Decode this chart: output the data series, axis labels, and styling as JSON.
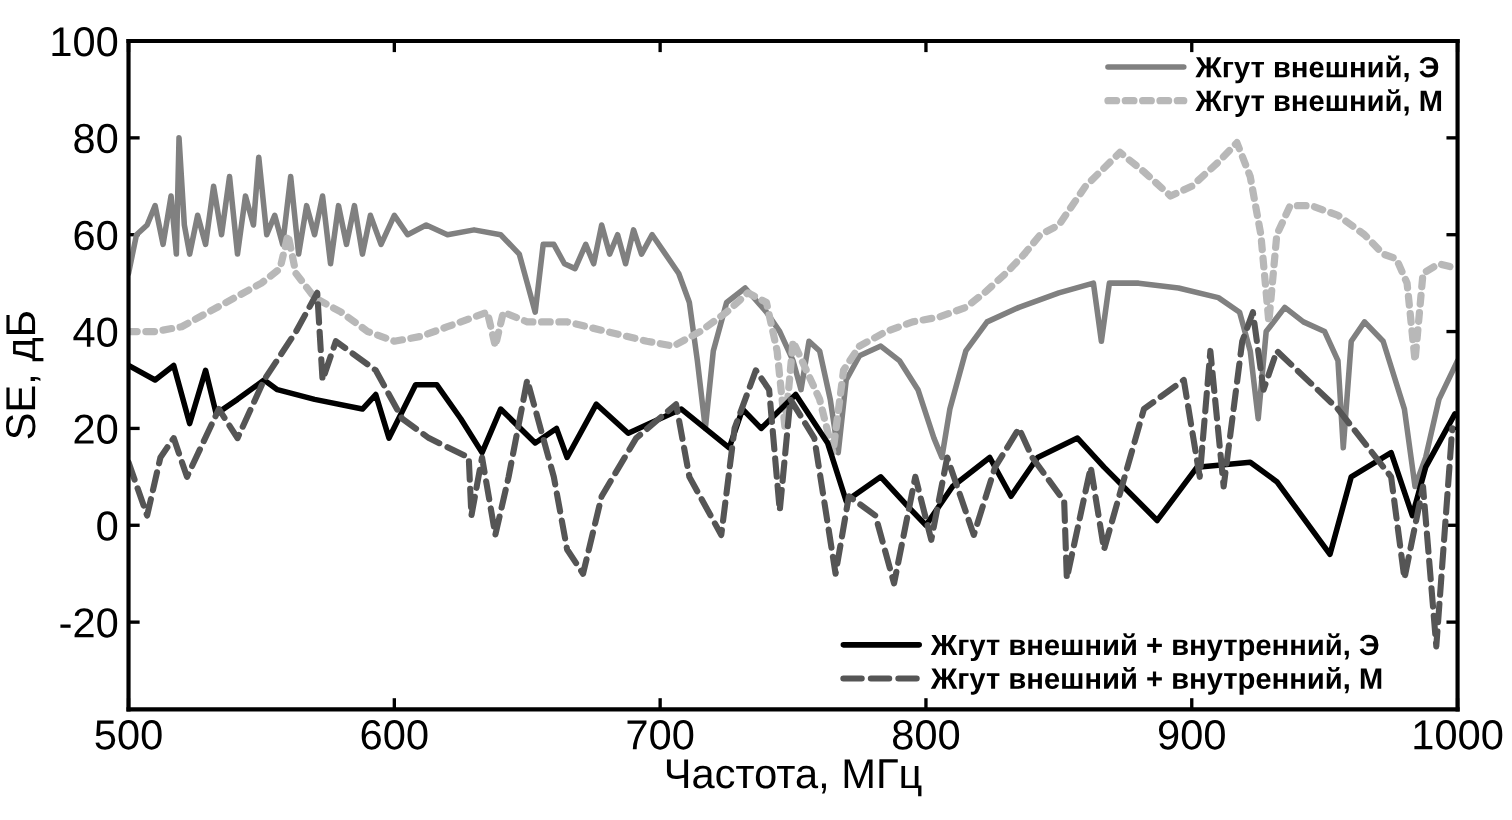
{
  "chart_data": {
    "type": "line",
    "xlabel": "Частота, МГц",
    "ylabel": "SE, дБ",
    "xlim": [
      500,
      1000
    ],
    "xticks": [
      500,
      600,
      700,
      800,
      900,
      1000
    ],
    "ylim": [
      -38,
      100
    ],
    "yticks": [
      -20,
      0,
      20,
      40,
      60,
      80,
      100
    ],
    "grid": false,
    "legend": "right",
    "marker": "none",
    "series": [
      {
        "name": "Жгут внешний, Э",
        "color": "#808080",
        "line_style": "solid",
        "x": [
          500,
          503,
          507,
          510,
          513,
          516,
          518,
          519,
          521,
          523,
          526,
          529,
          532,
          535,
          538,
          541,
          544,
          547,
          549,
          552,
          555,
          558,
          561,
          564,
          567,
          570,
          573,
          576,
          579,
          582,
          585,
          588,
          591,
          595,
          600,
          605,
          612,
          620,
          630,
          640,
          647,
          650,
          653,
          656,
          660,
          664,
          668,
          672,
          675,
          678,
          681,
          684,
          687,
          690,
          693,
          697,
          702,
          707,
          711,
          714,
          717,
          720,
          725,
          732,
          740,
          745,
          750,
          753,
          756,
          760,
          764,
          767,
          770,
          775,
          783,
          790,
          797,
          803,
          806,
          809,
          815,
          823,
          835,
          850,
          863,
          866,
          869,
          880,
          895,
          910,
          918,
          922,
          925,
          928,
          935,
          942,
          950,
          955,
          957,
          960,
          965,
          972,
          980,
          984,
          988,
          993,
          1000
        ],
        "values": [
          52,
          60,
          62,
          66,
          58,
          68,
          56,
          80,
          62,
          56,
          64,
          58,
          70,
          60,
          72,
          56,
          68,
          62,
          76,
          60,
          64,
          58,
          72,
          56,
          66,
          60,
          68,
          54,
          66,
          58,
          66,
          56,
          64,
          58,
          64,
          60,
          62,
          60,
          61,
          60,
          56,
          50,
          44,
          58,
          58,
          54,
          53,
          58,
          54,
          62,
          56,
          60,
          54,
          61,
          56,
          60,
          56,
          52,
          46,
          34,
          20,
          36,
          46,
          49,
          44,
          40,
          34,
          28,
          38,
          36,
          26,
          15,
          30,
          35,
          37,
          34,
          28,
          18,
          14,
          24,
          36,
          42,
          45,
          48,
          50,
          38,
          50,
          50,
          49,
          47,
          44,
          36,
          22,
          40,
          45,
          42,
          40,
          34,
          16,
          38,
          42,
          38,
          24,
          8,
          14,
          26,
          34
        ]
      },
      {
        "name": "Жгут внешний, М",
        "color": "#b8b8b8",
        "line_style": "dotted",
        "x": [
          500,
          510,
          520,
          530,
          540,
          550,
          557,
          560,
          563,
          570,
          580,
          590,
          600,
          610,
          620,
          630,
          635,
          638,
          641,
          650,
          665,
          680,
          695,
          705,
          715,
          725,
          733,
          740,
          744,
          747,
          750,
          755,
          760,
          765,
          769,
          775,
          785,
          795,
          805,
          815,
          822,
          830,
          837,
          843,
          850,
          860,
          873,
          882,
          892,
          900,
          910,
          917,
          922,
          926,
          929,
          932,
          937,
          945,
          955,
          965,
          972,
          977,
          981,
          984,
          987,
          993,
          1000
        ],
        "values": [
          40,
          40,
          41,
          44,
          47,
          50,
          53,
          60,
          52,
          47,
          44,
          40,
          38,
          39,
          41,
          43,
          44,
          37,
          44,
          42,
          42,
          40,
          38,
          37,
          40,
          44,
          48,
          46,
          36,
          20,
          38,
          32,
          26,
          15,
          32,
          37,
          40,
          42,
          43,
          45,
          48,
          52,
          56,
          60,
          62,
          70,
          77,
          73,
          68,
          70,
          75,
          79,
          72,
          60,
          42,
          60,
          66,
          66,
          64,
          60,
          56,
          55,
          50,
          34,
          52,
          54,
          53
        ]
      },
      {
        "name": "Жгут внешний + внутренний, Э",
        "color": "#000000",
        "line_style": "solid",
        "x": [
          500,
          510,
          517,
          523,
          529,
          533,
          541,
          551,
          556,
          570,
          588,
          593,
          598,
          608,
          616,
          625,
          633,
          640,
          653,
          661,
          665,
          676,
          688,
          696,
          708,
          726,
          731,
          738,
          751,
          763,
          770,
          783,
          793,
          800,
          810,
          824,
          832,
          842,
          857,
          867,
          887,
          902,
          922,
          932,
          952,
          960,
          975,
          983,
          988,
          999
        ],
        "values": [
          33,
          30,
          33,
          21,
          32,
          23,
          26,
          30,
          28,
          26,
          24,
          27,
          18,
          29,
          29,
          22,
          15,
          24,
          17,
          20,
          14,
          25,
          19,
          21,
          24,
          16,
          24,
          20,
          27,
          17,
          5,
          10,
          4,
          0,
          8,
          14,
          6,
          14,
          18,
          12,
          1,
          12,
          13,
          9,
          -6,
          10,
          15,
          2,
          12,
          23
        ]
      },
      {
        "name": "Жгут внешний + внутренний, М",
        "color": "#555555",
        "line_style": "dashed",
        "x": [
          500,
          507,
          512,
          517,
          522,
          534,
          541,
          551,
          563,
          571,
          573,
          578,
          593,
          603,
          613,
          628,
          629,
          633,
          638,
          643,
          650,
          653,
          660,
          665,
          671,
          678,
          691,
          706,
          711,
          723,
          728,
          736,
          741,
          745,
          749,
          758,
          766,
          771,
          781,
          788,
          796,
          802,
          808,
          818,
          826,
          835,
          840,
          852,
          853,
          862,
          867,
          882,
          897,
          903,
          907,
          912,
          919,
          923,
          927,
          932,
          955,
          975,
          980,
          987,
          992,
          998
        ],
        "values": [
          13,
          2,
          14,
          18,
          10,
          24,
          18,
          30,
          40,
          48,
          30,
          38,
          32,
          22,
          18,
          14,
          2,
          14,
          -2,
          10,
          30,
          24,
          10,
          -5,
          -10,
          6,
          18,
          25,
          10,
          -2,
          20,
          32,
          28,
          3,
          26,
          18,
          -10,
          6,
          2,
          -12,
          10,
          -3,
          14,
          -2,
          12,
          20,
          14,
          5,
          -11,
          12,
          -5,
          24,
          30,
          10,
          36,
          8,
          38,
          44,
          28,
          36,
          24,
          10,
          -11,
          8,
          -25,
          20
        ]
      }
    ]
  }
}
